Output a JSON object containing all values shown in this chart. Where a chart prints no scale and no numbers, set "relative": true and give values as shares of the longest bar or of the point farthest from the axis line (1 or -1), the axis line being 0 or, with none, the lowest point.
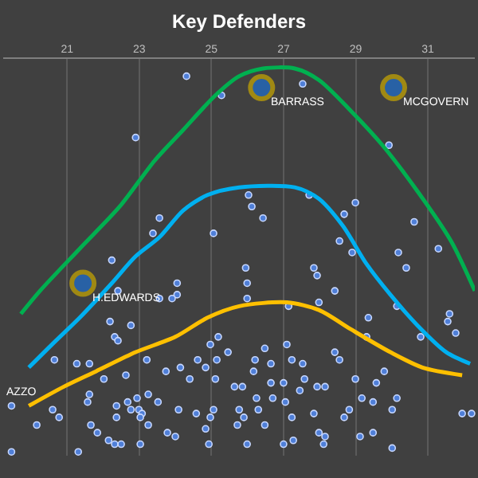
{
  "chart_data": {
    "type": "scatter",
    "title": "Key Defenders",
    "relative": true,
    "xlim": [
      19.23,
      32.3
    ],
    "xticks": [
      21,
      23,
      25,
      27,
      29,
      31
    ],
    "grid": "x",
    "series": [
      {
        "color": "#4f7fd8",
        "x": [
          24.31,
          25.28,
          22.9,
          23.56,
          23.38,
          25.06,
          27.53,
          29.92,
          26.03,
          26.12,
          26.43,
          27.71,
          28.99,
          28.68,
          30.62,
          22.24,
          22.41,
          24.05,
          24.05,
          23.91,
          23.56,
          22.19,
          22.77,
          22.32,
          22.41,
          20.65,
          21.27,
          21.62,
          22.02,
          22.63,
          23.21,
          23.74,
          24.14,
          24.62,
          24.4,
          24.84,
          25.15,
          25.46,
          25.19,
          24.97,
          25.11,
          25.64,
          21.62,
          21.57,
          20.6,
          22.37,
          22.77,
          22.99,
          22.94,
          23.25,
          23.52,
          23.08,
          22.68,
          22.37,
          24.09,
          24.58,
          24.97,
          25.06,
          19.46,
          20.16,
          20.78,
          21.66,
          21.84,
          22.15,
          22.32,
          22.5,
          23.03,
          23.25,
          23.78,
          24.0,
          24.93,
          24.84,
          19.46,
          21.31,
          23.03,
          28.55,
          28.9,
          30.18,
          31.29,
          27.84,
          30.4,
          25.95,
          25.99,
          25.99,
          27.93,
          28.42,
          27.98,
          27.14,
          30.14,
          31.6,
          31.55,
          29.35,
          31.77,
          29.3,
          30.8,
          27.09,
          28.42,
          26.21,
          26.48,
          27.23,
          27.53,
          26.65,
          27.58,
          28.55,
          26.17,
          25.86,
          26.25,
          27.45,
          27.93,
          28.15,
          27.0,
          26.65,
          28.99,
          29.57,
          29.79,
          26.7,
          27.05,
          26.3,
          25.77,
          25.9,
          25.72,
          26.48,
          27.23,
          27.84,
          27.98,
          28.15,
          28.68,
          28.82,
          29.17,
          29.48,
          30.01,
          30.14,
          30.01,
          27.27,
          25.99,
          31.95,
          32.21,
          29.48,
          29.12,
          28.11,
          27.0
        ],
        "values": [
          0.98,
          0.93,
          0.82,
          0.61,
          0.57,
          0.57,
          0.96,
          0.8,
          0.67,
          0.64,
          0.61,
          0.67,
          0.65,
          0.62,
          0.6,
          0.5,
          0.42,
          0.44,
          0.41,
          0.4,
          0.4,
          0.34,
          0.33,
          0.3,
          0.29,
          0.24,
          0.23,
          0.23,
          0.19,
          0.2,
          0.24,
          0.21,
          0.22,
          0.24,
          0.19,
          0.22,
          0.24,
          0.26,
          0.3,
          0.28,
          0.19,
          0.17,
          0.15,
          0.13,
          0.11,
          0.12,
          0.11,
          0.11,
          0.14,
          0.15,
          0.13,
          0.1,
          0.13,
          0.09,
          0.11,
          0.1,
          0.09,
          0.11,
          0.12,
          0.07,
          0.09,
          0.07,
          0.05,
          0.03,
          0.02,
          0.02,
          0.09,
          0.07,
          0.05,
          0.04,
          0.02,
          0.06,
          0.0,
          0.0,
          0.02,
          0.55,
          0.52,
          0.52,
          0.53,
          0.48,
          0.48,
          0.48,
          0.44,
          0.4,
          0.46,
          0.42,
          0.39,
          0.38,
          0.38,
          0.36,
          0.34,
          0.35,
          0.31,
          0.3,
          0.3,
          0.28,
          0.26,
          0.24,
          0.27,
          0.24,
          0.23,
          0.23,
          0.19,
          0.24,
          0.21,
          0.17,
          0.14,
          0.16,
          0.17,
          0.17,
          0.18,
          0.18,
          0.19,
          0.18,
          0.21,
          0.14,
          0.13,
          0.11,
          0.11,
          0.09,
          0.07,
          0.07,
          0.09,
          0.1,
          0.05,
          0.04,
          0.09,
          0.11,
          0.14,
          0.13,
          0.11,
          0.14,
          0.01,
          0.03,
          0.02,
          0.1,
          0.1,
          0.05,
          0.04,
          0.02,
          0.02
        ]
      },
      {
        "type": "line",
        "color": "#00b050",
        "x": [
          19.72,
          20.25,
          21.35,
          22.46,
          23.43,
          24.22,
          25.11,
          25.77,
          26.43,
          27.31,
          27.98,
          28.86,
          29.74,
          30.71,
          31.64,
          32.3
        ],
        "values": [
          0.36,
          0.42,
          0.53,
          0.64,
          0.76,
          0.84,
          0.93,
          0.98,
          1.0,
          1.0,
          0.97,
          0.89,
          0.8,
          0.68,
          0.55,
          0.42
        ]
      },
      {
        "type": "line",
        "color": "#00b0f0",
        "x": [
          19.94,
          20.69,
          21.35,
          22.24,
          22.9,
          23.56,
          24.22,
          24.89,
          25.77,
          27.31,
          27.98,
          28.64,
          29.3,
          29.96,
          30.71,
          31.51,
          32.17
        ],
        "values": [
          0.22,
          0.29,
          0.35,
          0.44,
          0.51,
          0.56,
          0.63,
          0.67,
          0.69,
          0.69,
          0.66,
          0.59,
          0.49,
          0.41,
          0.33,
          0.26,
          0.23
        ]
      },
      {
        "type": "line",
        "color": "#ffc000",
        "x": [
          19.94,
          20.91,
          21.8,
          22.9,
          24.0,
          24.89,
          25.77,
          27.09,
          27.98,
          28.86,
          29.96,
          30.85,
          31.95
        ],
        "values": [
          0.12,
          0.17,
          0.21,
          0.26,
          0.3,
          0.35,
          0.38,
          0.39,
          0.37,
          0.32,
          0.26,
          0.22,
          0.2
        ]
      },
      {
        "type": "bubble",
        "color": "#1f6fd0",
        "x": [
          21.44,
          26.39,
          30.05
        ],
        "values": [
          0.44,
          0.95,
          0.95
        ],
        "sizes": [
          1,
          1,
          1
        ]
      }
    ],
    "annotations": [
      {
        "text": "H.EDWARDS",
        "x": 21.44,
        "y": 0.44
      },
      {
        "text": "BARRASS",
        "x": 26.39,
        "y": 0.95
      },
      {
        "text": "MCGOVERN",
        "x": 30.05,
        "y": 0.95
      },
      "AZZO"
    ]
  }
}
